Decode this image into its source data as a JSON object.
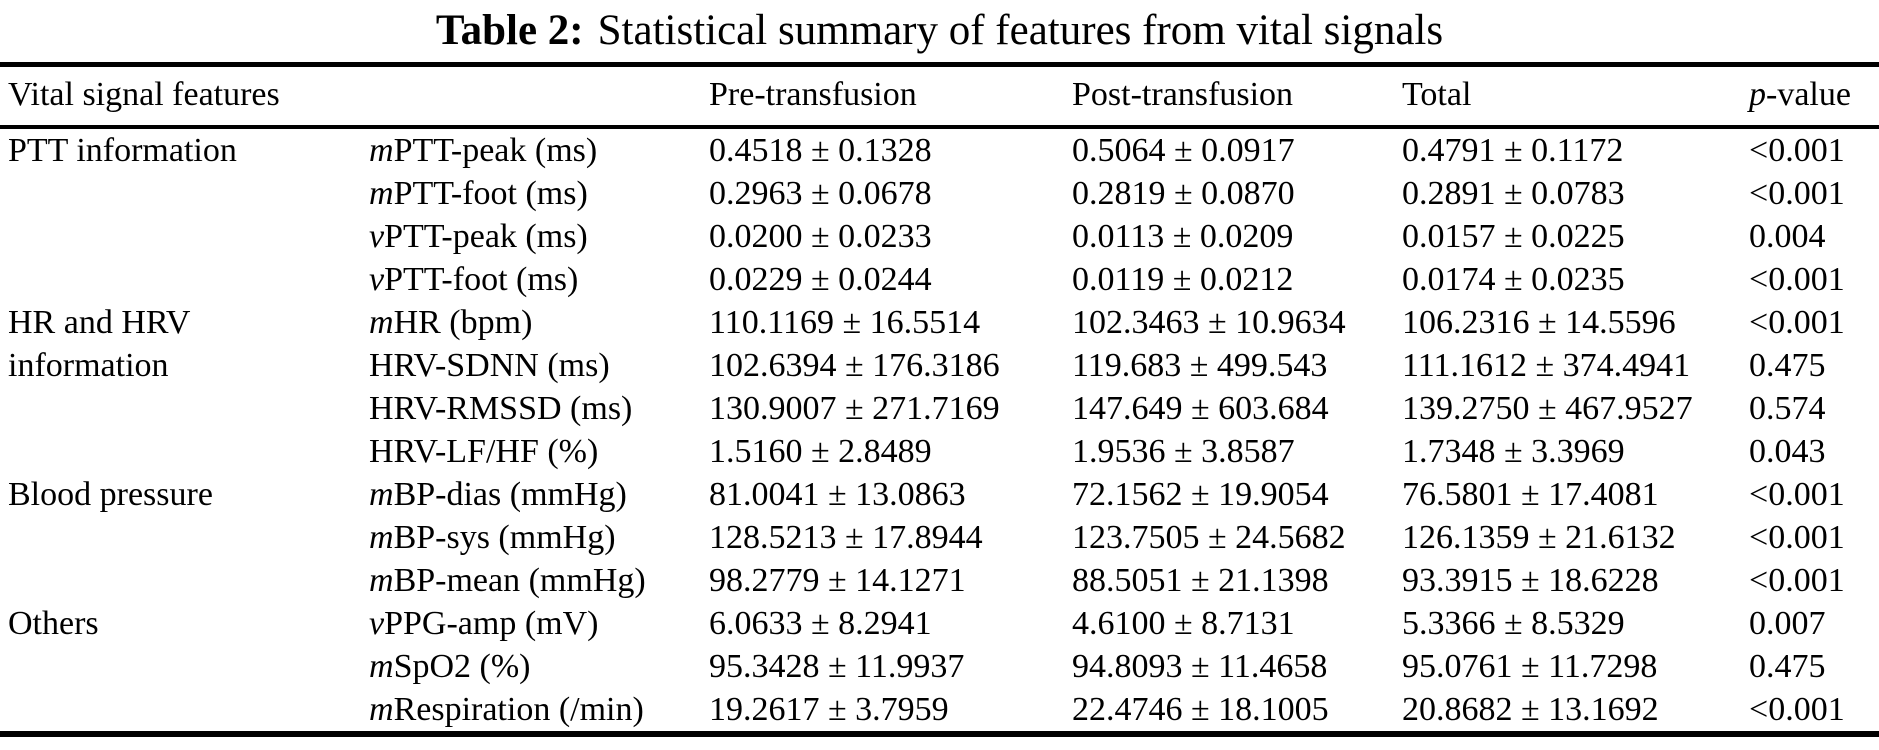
{
  "title": {
    "label": "Table 2:",
    "text": "Statistical summary of features from vital signals"
  },
  "header": {
    "col_features": "Vital signal features",
    "col_pre": "Pre-transfusion",
    "col_post": "Post-transfusion",
    "col_total": "Total",
    "col_p_prefix": "p",
    "col_p_suffix": "-value"
  },
  "rows": [
    {
      "group": "PTT information",
      "feature_prefix": "m",
      "feature": "PTT-peak (ms)",
      "pre": "0.4518 ± 0.1328",
      "post": "0.5064 ± 0.0917",
      "total": "0.4791 ± 0.1172",
      "p": "<0.001"
    },
    {
      "group": "",
      "feature_prefix": "m",
      "feature": "PTT-foot (ms)",
      "pre": "0.2963 ± 0.0678",
      "post": "0.2819 ± 0.0870",
      "total": "0.2891 ± 0.0783",
      "p": "<0.001"
    },
    {
      "group": "",
      "feature_prefix": "v",
      "feature": "PTT-peak (ms)",
      "pre": "0.0200 ± 0.0233",
      "post": "0.0113 ± 0.0209",
      "total": "0.0157 ± 0.0225",
      "p": "0.004"
    },
    {
      "group": "",
      "feature_prefix": "v",
      "feature": "PTT-foot (ms)",
      "pre": "0.0229 ± 0.0244",
      "post": "0.0119 ± 0.0212",
      "total": "0.0174 ± 0.0235",
      "p": "<0.001"
    },
    {
      "group": "HR and HRV",
      "feature_prefix": "m",
      "feature": "HR (bpm)",
      "pre": "110.1169 ± 16.5514",
      "post": "102.3463 ± 10.9634",
      "total": "106.2316 ± 14.5596",
      "p": "<0.001"
    },
    {
      "group": "information",
      "feature_prefix": "",
      "feature": "HRV-SDNN (ms)",
      "pre": "102.6394 ± 176.3186",
      "post": "119.683 ± 499.543",
      "total": "111.1612 ± 374.4941",
      "p": "0.475"
    },
    {
      "group": "",
      "feature_prefix": "",
      "feature": "HRV-RMSSD (ms)",
      "pre": "130.9007 ± 271.7169",
      "post": "147.649 ± 603.684",
      "total": "139.2750 ± 467.9527",
      "p": "0.574"
    },
    {
      "group": "",
      "feature_prefix": "",
      "feature": "HRV-LF/HF (%)",
      "pre": "1.5160 ± 2.8489",
      "post": "1.9536 ± 3.8587",
      "total": "1.7348 ± 3.3969",
      "p": "0.043"
    },
    {
      "group": "Blood pressure",
      "feature_prefix": "m",
      "feature": "BP-dias (mmHg)",
      "pre": "81.0041 ± 13.0863",
      "post": "72.1562 ± 19.9054",
      "total": "76.5801 ± 17.4081",
      "p": "<0.001"
    },
    {
      "group": "",
      "feature_prefix": "m",
      "feature": "BP-sys (mmHg)",
      "pre": "128.5213 ± 17.8944",
      "post": "123.7505 ± 24.5682",
      "total": "126.1359 ± 21.6132",
      "p": "<0.001"
    },
    {
      "group": "",
      "feature_prefix": "m",
      "feature": "BP-mean (mmHg)",
      "pre": "98.2779 ± 14.1271",
      "post": "88.5051 ± 21.1398",
      "total": "93.3915 ± 18.6228",
      "p": "<0.001"
    },
    {
      "group": "Others",
      "feature_prefix": "v",
      "feature": "PPG-amp (mV)",
      "pre": "6.0633 ± 8.2941",
      "post": "4.6100 ± 8.7131",
      "total": "5.3366 ± 8.5329",
      "p": "0.007"
    },
    {
      "group": "",
      "feature_prefix": "m",
      "feature": "SpO2 (%)",
      "pre": "95.3428 ± 11.9937",
      "post": "94.8093 ± 11.4658",
      "total": "95.0761 ± 11.7298",
      "p": "0.475"
    },
    {
      "group": "",
      "feature_prefix": "m",
      "feature": "Respiration (/min)",
      "pre": "19.2617 ± 3.7959",
      "post": "22.4746 ± 18.1005",
      "total": "20.8682 ± 13.1692",
      "p": "<0.001"
    }
  ]
}
